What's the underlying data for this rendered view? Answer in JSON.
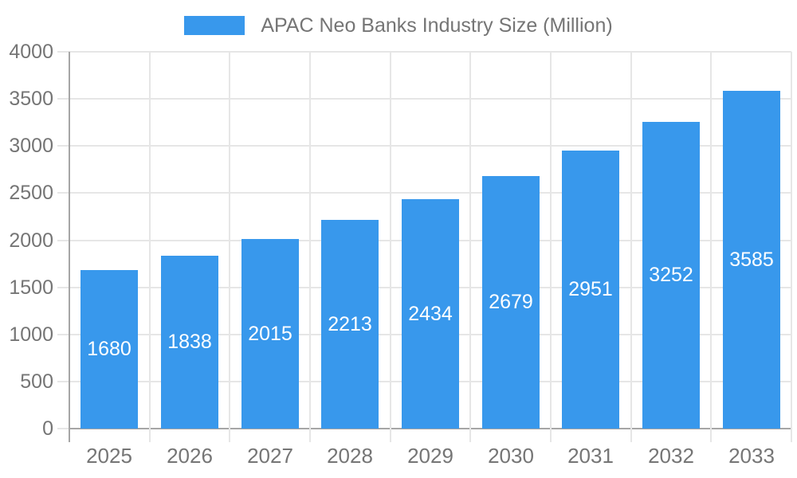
{
  "chart_data": {
    "type": "bar",
    "legend_label": "APAC Neo Banks Industry Size (Million)",
    "legend_position": "top-center",
    "categories": [
      "2025",
      "2026",
      "2027",
      "2028",
      "2029",
      "2030",
      "2031",
      "2032",
      "2033"
    ],
    "values": [
      1680,
      1838,
      2015,
      2213,
      2434,
      2679,
      2951,
      3252,
      3585
    ],
    "bar_labels": [
      "1680",
      "1838",
      "2015",
      "2213",
      "2434",
      "2679",
      "2951",
      "3252",
      "3585"
    ],
    "ylim": [
      0,
      4000
    ],
    "ytick_step": 500,
    "ytick_labels": [
      "0",
      "500",
      "1000",
      "1500",
      "2000",
      "2500",
      "3000",
      "3500",
      "4000"
    ],
    "grid": true,
    "xlabel": "",
    "ylabel": "",
    "colors": {
      "bar": "#3898ec",
      "bar_label_text": "#ffffff",
      "axis_line": "#a6a6a6",
      "grid_line": "#e6e6e6",
      "axis_text": "#757575",
      "legend_text": "#757575",
      "background": "#ffffff"
    }
  }
}
